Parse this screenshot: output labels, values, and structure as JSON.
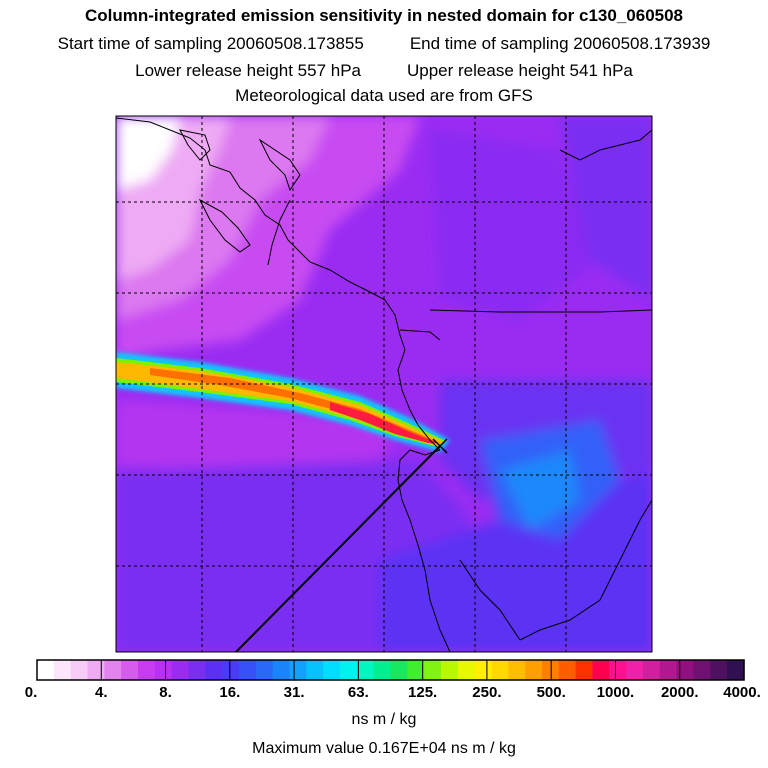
{
  "title": "Column-integrated emission sensitivity in nested domain for c130_060508",
  "sampling": {
    "start": "Start time of sampling 20060508.173855",
    "end": "End time of sampling 20060508.173939"
  },
  "release": {
    "lower": "Lower release height  557 hPa",
    "upper": "Upper release height  541 hPa"
  },
  "met": "Meteorological data used are from GFS",
  "colorbar": {
    "ticks": [
      "0.",
      "4.",
      "8.",
      "16.",
      "31.",
      "63.",
      "125.",
      "250.",
      "500.",
      "1000.",
      "2000.",
      "4000."
    ],
    "colors": [
      "#ffffff",
      "#fbe6fb",
      "#f6ccf6",
      "#eeaaf2",
      "#e283ee",
      "#d65cee",
      "#c83cf0",
      "#b830f2",
      "#9a2cf2",
      "#7a2ef2",
      "#5c30f4",
      "#4a3cf6",
      "#3850f8",
      "#2a68fa",
      "#1c84fb",
      "#10a2fc",
      "#06c2fd",
      "#00deff",
      "#00f2ee",
      "#00f8c0",
      "#00f090",
      "#18e860",
      "#40ee30",
      "#80f410",
      "#b8f800",
      "#e8f800",
      "#fff000",
      "#ffd800",
      "#ffbe00",
      "#ffa000",
      "#ff8000",
      "#ff5c00",
      "#ff3000",
      "#ff0050",
      "#ff1090",
      "#f020a8",
      "#d020a0",
      "#b01890",
      "#901080",
      "#701070",
      "#501060",
      "#301050"
    ],
    "unit": "ns m / kg"
  },
  "max_value": "Maximum value  0.167E+04 ns m / kg",
  "colors": {
    "background_field": "#9a2cf2",
    "plume_core": "#ff0040",
    "plume_mid": "#ffb000",
    "plume_edge": "#00e8ff",
    "coastline": "#000000",
    "grid": "#000000"
  }
}
